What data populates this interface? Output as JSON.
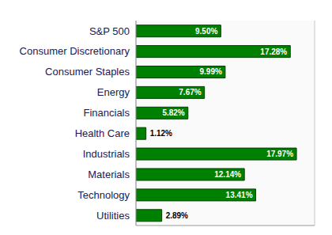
{
  "chart_data": {
    "type": "bar",
    "orientation": "horizontal",
    "categories": [
      "S&P 500",
      "Consumer Discretionary",
      "Consumer Staples",
      "Energy",
      "Financials",
      "Health Care",
      "Industrials",
      "Materials",
      "Technology",
      "Utilities"
    ],
    "values": [
      9.5,
      17.28,
      9.99,
      7.67,
      5.82,
      1.12,
      17.97,
      12.14,
      13.41,
      2.89
    ],
    "value_labels": [
      "9.50%",
      "17.28%",
      "9.99%",
      "7.67%",
      "5.82%",
      "1.12%",
      "17.97%",
      "12.14%",
      "13.41%",
      "2.89%"
    ],
    "color": "#008000",
    "xlim": [
      0,
      20
    ],
    "xticks": [
      0,
      2,
      4,
      6,
      8,
      10,
      12,
      14,
      16,
      18,
      20
    ],
    "grid": true,
    "data_labels": true,
    "tick_labels": "y"
  }
}
